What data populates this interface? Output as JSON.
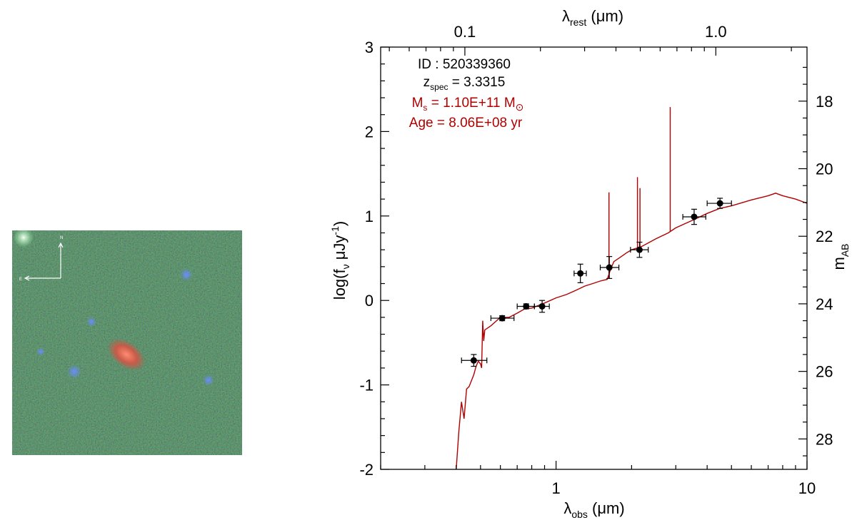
{
  "cutout": {
    "compass_n": "N",
    "compass_e": "E"
  },
  "chart_data": {
    "type": "scatter",
    "xscale": "log",
    "xlim": [
      0.2,
      10
    ],
    "ylim": [
      -2,
      3
    ],
    "xlabel_obs_main": "λ",
    "xlabel_obs_sub": "obs",
    "xlabel_obs_unit": " (μm)",
    "xlabel_rest_main": "λ",
    "xlabel_rest_sub": "rest",
    "xlabel_rest_unit": " (μm)",
    "ylabel_left": "log(f",
    "ylabel_left_sub": "ν",
    "ylabel_left_unit": "  μJy",
    "ylabel_left_sup": "-1",
    "ylabel_left_close": ")",
    "ylabel_right_main": "m",
    "ylabel_right_sub": "AB",
    "x_ticks": [
      {
        "value": 1,
        "label": "1"
      },
      {
        "value": 10,
        "label": "10"
      }
    ],
    "y_ticks": [
      {
        "value": -2,
        "label": "-2"
      },
      {
        "value": -1,
        "label": "-1"
      },
      {
        "value": 0,
        "label": "0"
      },
      {
        "value": 1,
        "label": "1"
      },
      {
        "value": 2,
        "label": "2"
      },
      {
        "value": 3,
        "label": "3"
      }
    ],
    "top_ticks": [
      {
        "value": 0.1,
        "label": "0.1"
      },
      {
        "value": 1.0,
        "label": "1.0"
      }
    ],
    "right_ticks": [
      {
        "value": 18,
        "label": "18"
      },
      {
        "value": 20,
        "label": "20"
      },
      {
        "value": 22,
        "label": "22"
      },
      {
        "value": 24,
        "label": "24"
      },
      {
        "value": 26,
        "label": "26"
      },
      {
        "value": 28,
        "label": "28"
      }
    ],
    "redshift": 3.3315,
    "annotations": {
      "id_text": "ID : 520339360",
      "z_main": "z",
      "z_sub": "spec",
      "z_val": " =  3.3315",
      "ms_main": "M",
      "ms_sub": "s",
      "ms_val": " = 1.10E+11 M",
      "ms_sun": "⊙",
      "age_text": "Age = 8.06E+08 yr",
      "color_id": "#000000",
      "color_props": "#b00000"
    },
    "model_color": "#b00000",
    "photometry": [
      {
        "x": 0.47,
        "y": -0.71,
        "xerr": [
          0.42,
          0.53
        ],
        "yerr": 0.07
      },
      {
        "x": 0.61,
        "y": -0.21,
        "xerr": [
          0.55,
          0.68
        ],
        "yerr": 0.03
      },
      {
        "x": 0.76,
        "y": -0.07,
        "xerr": [
          0.7,
          0.82
        ],
        "yerr": 0.03
      },
      {
        "x": 0.88,
        "y": -0.07,
        "xerr": [
          0.82,
          0.94
        ],
        "yerr": 0.07
      },
      {
        "x": 1.25,
        "y": 0.32,
        "xerr": [
          1.18,
          1.32
        ],
        "yerr": 0.11
      },
      {
        "x": 1.63,
        "y": 0.39,
        "xerr": [
          1.5,
          1.78
        ],
        "yerr": 0.13
      },
      {
        "x": 2.15,
        "y": 0.6,
        "xerr": [
          1.98,
          2.33
        ],
        "yerr": 0.09
      },
      {
        "x": 3.55,
        "y": 0.99,
        "xerr": [
          3.2,
          3.95
        ],
        "yerr": 0.09
      },
      {
        "x": 4.5,
        "y": 1.15,
        "xerr": [
          4.0,
          5.0
        ],
        "yerr": 0.06
      }
    ],
    "model_continuum": [
      [
        0.4,
        -2.0
      ],
      [
        0.41,
        -1.55
      ],
      [
        0.42,
        -1.2
      ],
      [
        0.43,
        -1.4
      ],
      [
        0.44,
        -1.05
      ],
      [
        0.45,
        -1.02
      ],
      [
        0.46,
        -0.95
      ],
      [
        0.47,
        -0.88
      ],
      [
        0.48,
        -0.78
      ],
      [
        0.49,
        -0.72
      ],
      [
        0.5,
        -0.75
      ],
      [
        0.505,
        -0.8
      ],
      [
        0.51,
        -0.24
      ],
      [
        0.515,
        -0.48
      ],
      [
        0.52,
        -0.35
      ],
      [
        0.55,
        -0.3
      ],
      [
        0.6,
        -0.2
      ],
      [
        0.65,
        -0.2
      ],
      [
        0.7,
        -0.15
      ],
      [
        0.75,
        -0.1
      ],
      [
        0.8,
        -0.09
      ],
      [
        0.85,
        -0.06
      ],
      [
        0.9,
        -0.03
      ],
      [
        1.0,
        0.03
      ],
      [
        1.1,
        0.07
      ],
      [
        1.2,
        0.12
      ],
      [
        1.3,
        0.17
      ],
      [
        1.4,
        0.2
      ],
      [
        1.5,
        0.23
      ],
      [
        1.6,
        0.25
      ],
      [
        1.65,
        0.37
      ],
      [
        1.7,
        0.46
      ],
      [
        1.8,
        0.51
      ],
      [
        1.9,
        0.56
      ],
      [
        2.0,
        0.6
      ],
      [
        2.2,
        0.64
      ],
      [
        2.5,
        0.73
      ],
      [
        2.8,
        0.8
      ],
      [
        3.0,
        0.86
      ],
      [
        3.5,
        0.95
      ],
      [
        4.0,
        1.03
      ],
      [
        4.5,
        1.09
      ],
      [
        5.0,
        1.12
      ],
      [
        6.0,
        1.19
      ],
      [
        7.0,
        1.24
      ],
      [
        7.5,
        1.27
      ],
      [
        8.0,
        1.24
      ],
      [
        9.0,
        1.2
      ],
      [
        10.0,
        1.15
      ]
    ],
    "emission_lines": [
      {
        "x": 1.625,
        "base": 0.26,
        "peak": 1.28
      },
      {
        "x": 2.11,
        "base": 0.62,
        "peak": 1.46
      },
      {
        "x": 2.16,
        "base": 0.63,
        "peak": 1.33
      },
      {
        "x": 2.85,
        "base": 0.82,
        "peak": 2.29
      }
    ]
  }
}
